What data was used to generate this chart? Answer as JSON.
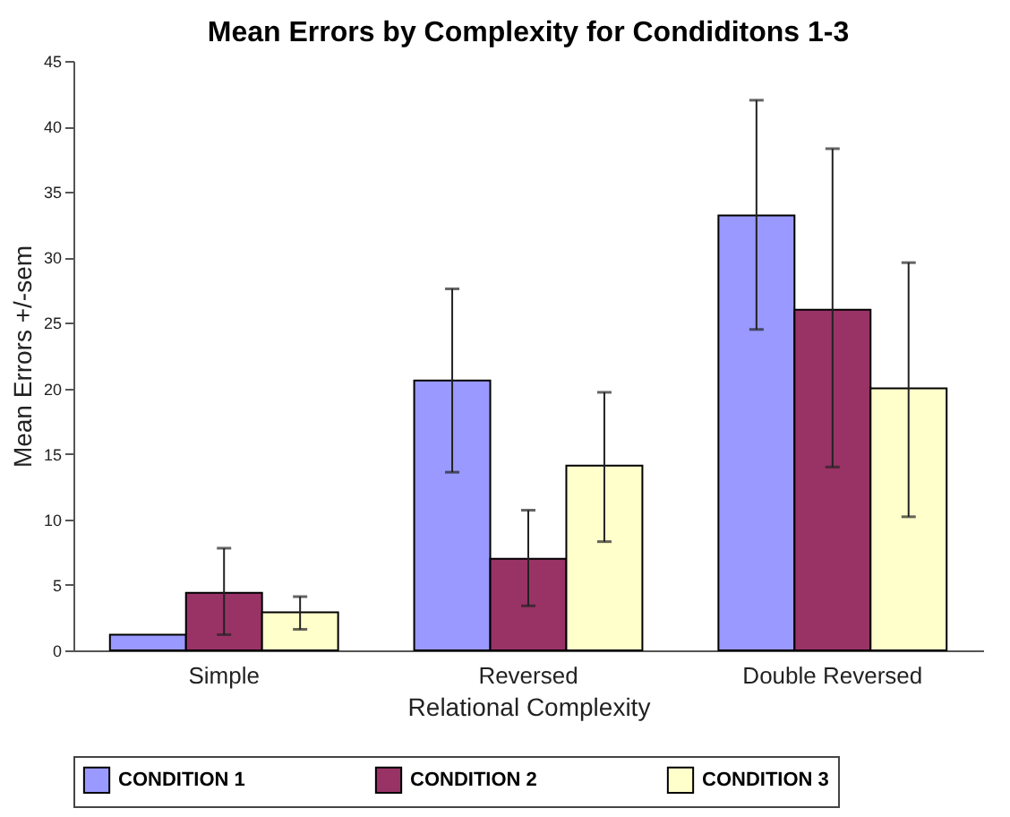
{
  "chart_data": {
    "type": "bar",
    "title": "Mean Errors by Complexity for Condiditons 1-3",
    "xlabel": "Relational Complexity",
    "ylabel": "Mean Errors +/-sem",
    "categories": [
      "Simple",
      "Reversed",
      "Double Reversed"
    ],
    "series": [
      {
        "name": "CONDITION 1",
        "color": "#9999ff",
        "values": [
          1.2,
          20.6,
          33.2
        ],
        "errors": [
          null,
          [
            13.6,
            27.6
          ],
          [
            24.5,
            42.0
          ]
        ]
      },
      {
        "name": "CONDITION 2",
        "color": "#993366",
        "values": [
          4.4,
          7.0,
          26.0
        ],
        "errors": [
          [
            1.2,
            7.8
          ],
          [
            3.4,
            10.7
          ],
          [
            14.0,
            38.3
          ]
        ]
      },
      {
        "name": "CONDITION 3",
        "color": "#ffffcc",
        "values": [
          2.9,
          14.1,
          20.0
        ],
        "errors": [
          [
            1.6,
            4.1
          ],
          [
            8.3,
            19.7
          ],
          [
            10.2,
            29.6
          ]
        ]
      }
    ],
    "ylim": [
      0,
      45
    ],
    "yticks": [
      0,
      5,
      10,
      15,
      20,
      25,
      30,
      35,
      40,
      45
    ],
    "grid": false,
    "legend": "bottom"
  }
}
